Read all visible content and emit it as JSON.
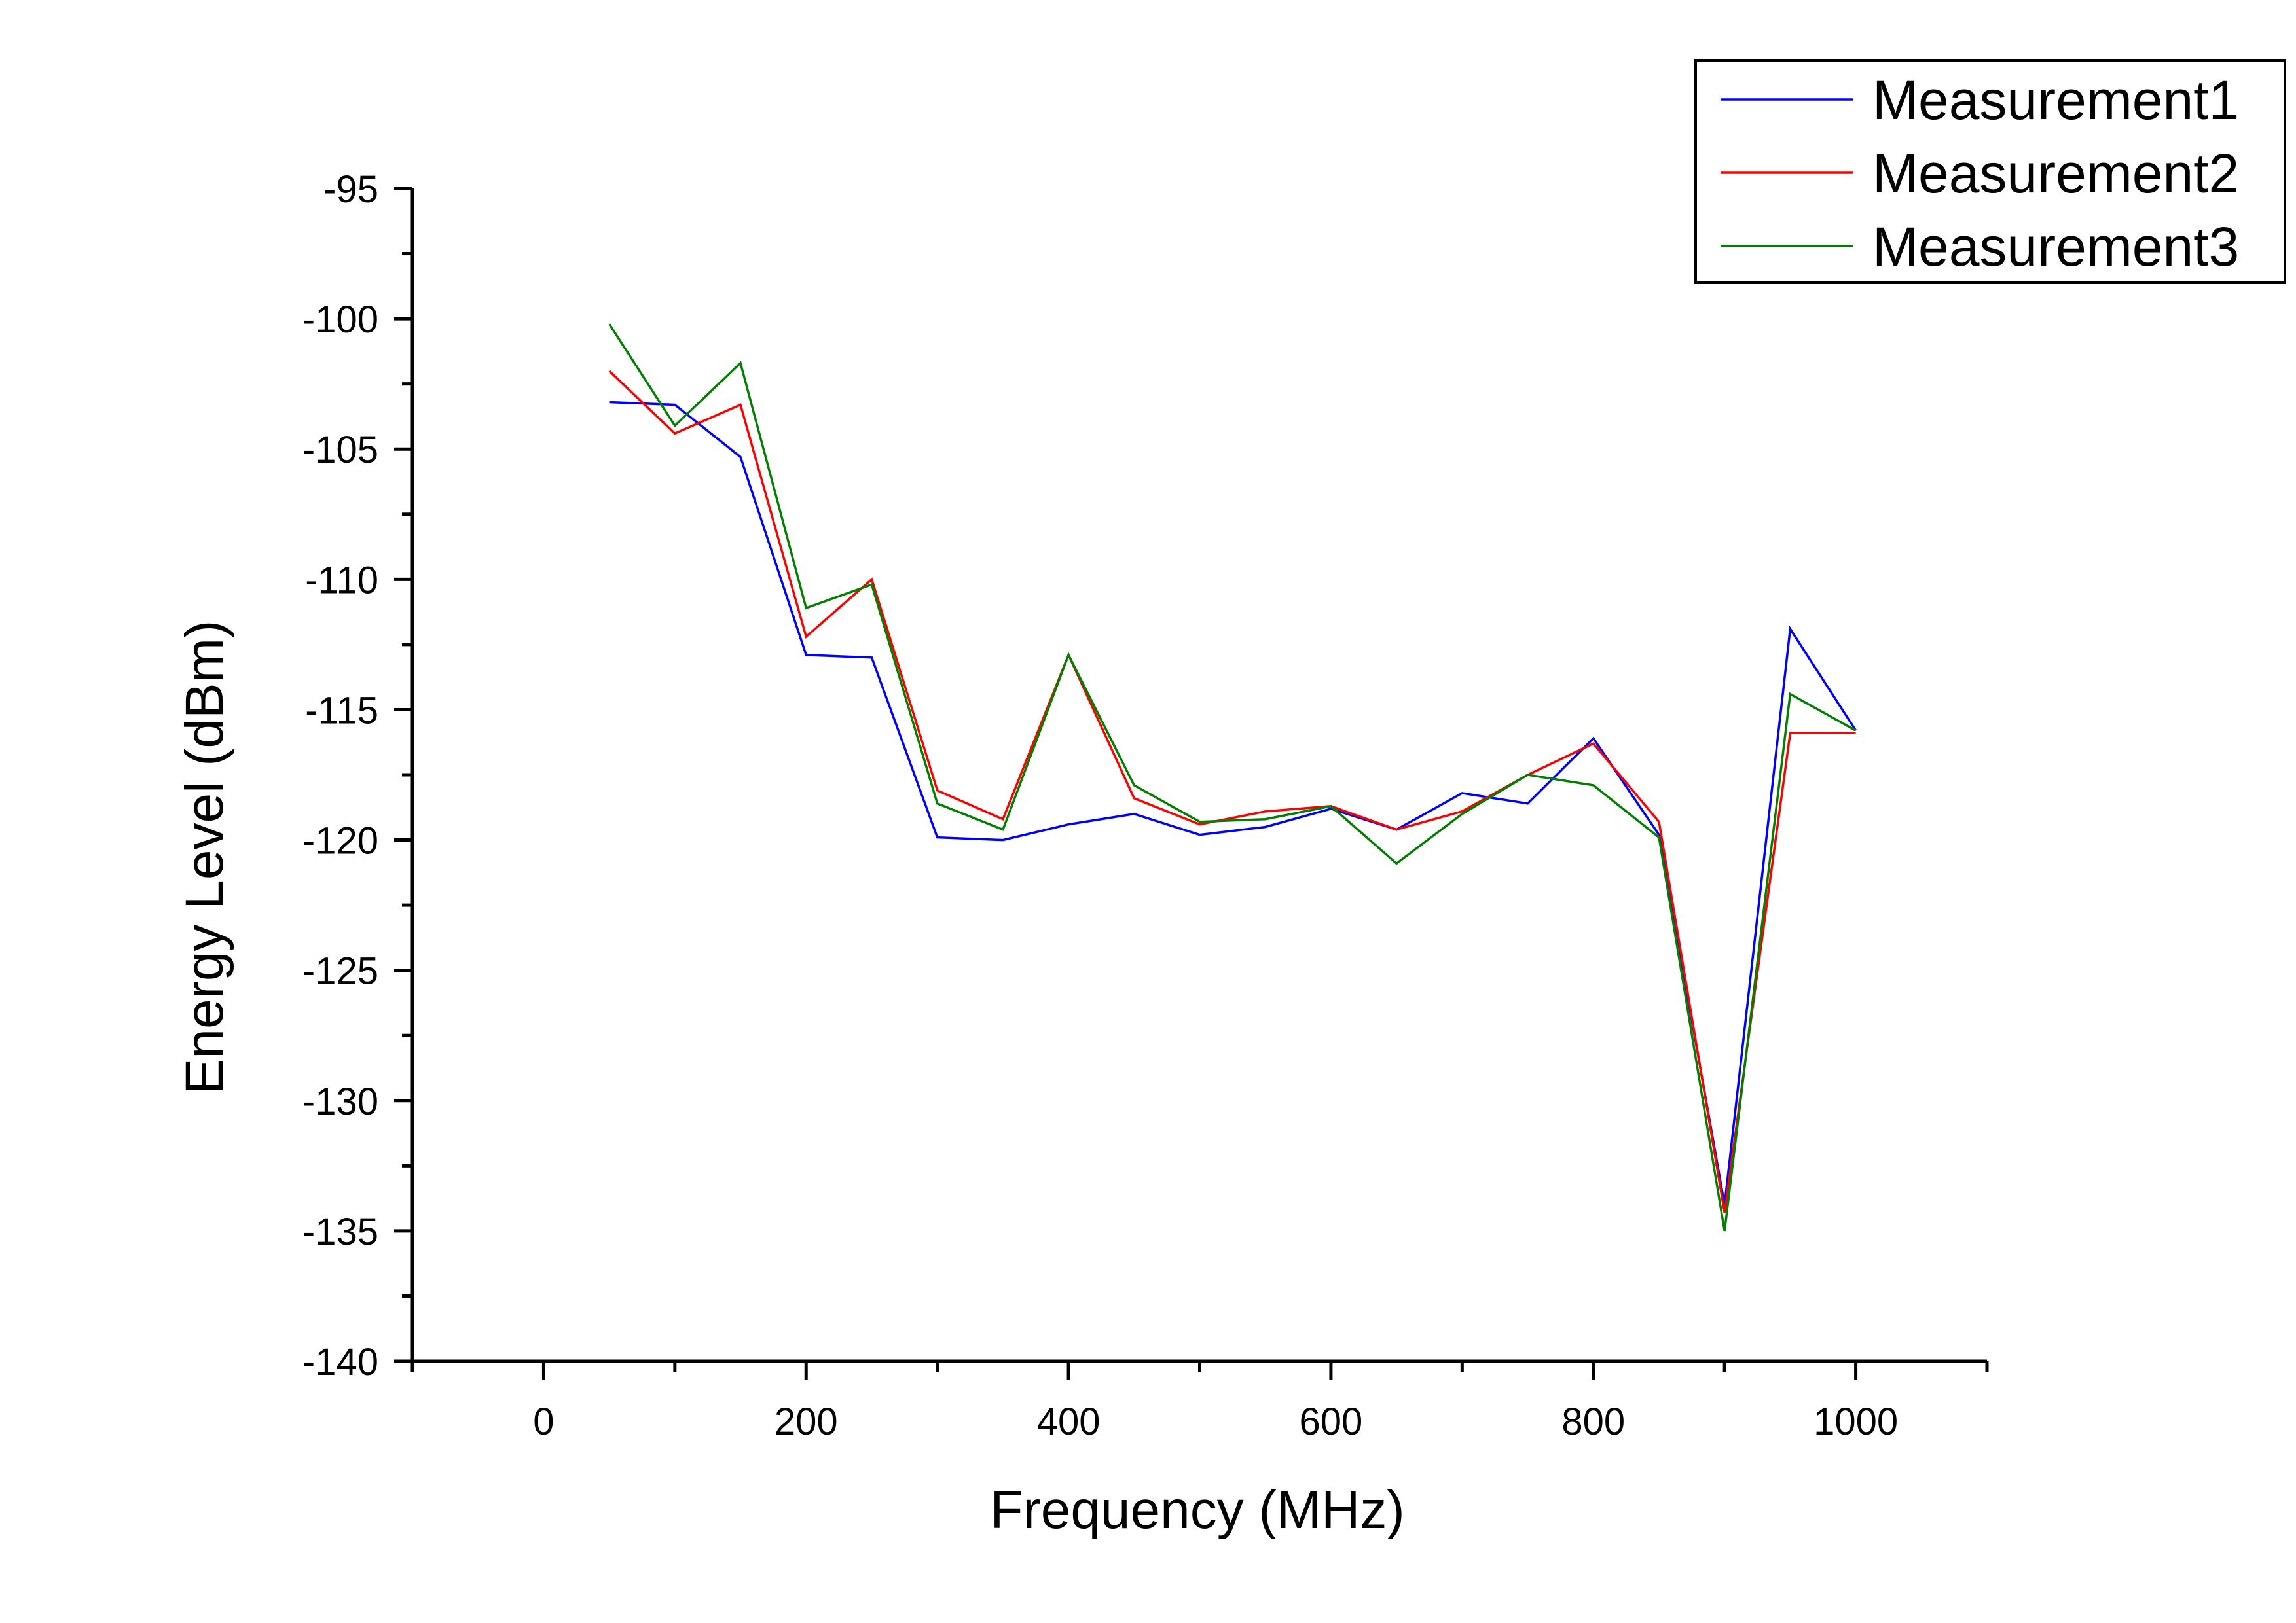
{
  "chart_data": {
    "type": "line",
    "title": "",
    "xlabel": "Frequency (MHz)",
    "ylabel": "Energy Level (dBm)",
    "xlim": [
      -100,
      1100
    ],
    "ylim": [
      -140,
      -95
    ],
    "x_major_ticks": [
      0,
      200,
      400,
      600,
      800,
      1000
    ],
    "y_major_ticks": [
      -95,
      -100,
      -105,
      -110,
      -115,
      -120,
      -125,
      -130,
      -135,
      -140
    ],
    "grid": false,
    "legend_position": "top-right",
    "x": [
      50,
      100,
      150,
      200,
      250,
      300,
      350,
      400,
      450,
      500,
      550,
      600,
      650,
      700,
      750,
      800,
      850,
      900,
      950,
      1000
    ],
    "series": [
      {
        "name": "Measurement1",
        "color": "#0000ff",
        "values": [
          -103.2,
          -103.3,
          -105.3,
          -112.9,
          -113.0,
          -119.9,
          -120.0,
          -119.4,
          -119.0,
          -119.8,
          -119.5,
          -118.8,
          -119.6,
          -118.2,
          -118.6,
          -116.1,
          -119.8,
          -134.0,
          -111.9,
          -115.8
        ]
      },
      {
        "name": "Measurement2",
        "color": "#ff0000",
        "values": [
          -102.0,
          -104.4,
          -103.3,
          -112.2,
          -110.0,
          -118.1,
          -119.2,
          -112.9,
          -118.4,
          -119.4,
          -118.9,
          -118.7,
          -119.6,
          -118.9,
          -117.5,
          -116.3,
          -119.3,
          -134.3,
          -115.9,
          -115.9
        ]
      },
      {
        "name": "Measurement3",
        "color": "#007f00",
        "values": [
          -100.2,
          -104.1,
          -101.7,
          -111.1,
          -110.2,
          -118.6,
          -119.6,
          -112.9,
          -117.9,
          -119.3,
          -119.2,
          -118.7,
          -120.9,
          -119.0,
          -117.5,
          -117.9,
          -119.9,
          -135.0,
          -114.4,
          -115.8
        ]
      }
    ]
  }
}
